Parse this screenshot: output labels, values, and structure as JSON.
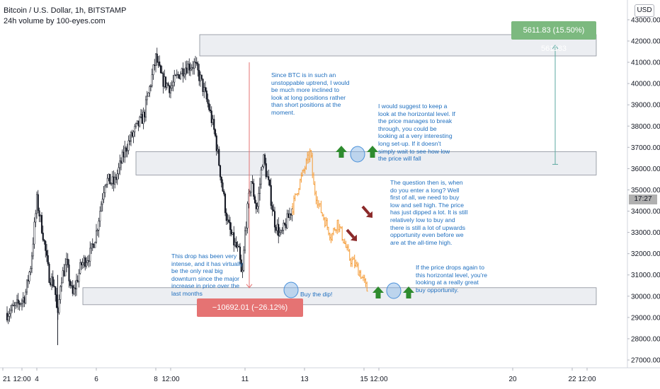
{
  "header": {
    "title": "Bitcoin / U.S. Dollar, 1h, BITSTAMP",
    "subtitle": "24h volume by 100-eyes.com",
    "currency_button": "USD",
    "current_price_tag": "17:27"
  },
  "colors": {
    "candle": "#131722",
    "projection": "#f5a142",
    "zone_fill": "#eceef2",
    "zone_border": "#8a8e99",
    "note_text": "#1f6fbf",
    "up_arrow": "#2e8b2e",
    "down_arrow": "#8b2a2a",
    "circle": "#4a90d9",
    "measure_up": "#5ba9a0",
    "measure_down": "#e57373"
  },
  "annotations": {
    "note_uptrend": "Since BTC is in such an unstoppable uptrend, I would be much more inclined to look at long positions rather than short positions at the moment.",
    "note_horizontal": "I would suggest to keep a look at the horizontal level. If the price manages to break through, you could be looking at a very interesting long set-up. If it doesn't simply wait to see how low the price will fall",
    "note_question": "The question then is, when do you enter a long? Well first of all, we need to buy low and sell high. The price has just dipped a lot. It is still relatively low to buy and there is still a lot of upwards opportunity even before we are at the all-time high.",
    "note_drop": "This drop has been very intense, and it has virtually be the only real big downturn since the major increase in price over the last months",
    "note_buy_dip": "Buy the dip!",
    "note_great_buy": "If the price drops again to this horizontal level, you're looking at a really great buy opportunity.",
    "measure_up_label": "5611.83 (15.50%) 561183",
    "measure_down_label": "−10692.01 (−26.12%) −1069201"
  },
  "chart_data": {
    "type": "candlestick",
    "title": "Bitcoin / U.S. Dollar, 1h, BITSTAMP",
    "xlabel": "",
    "ylabel": "",
    "ylim": [
      26500,
      43500
    ],
    "y_ticks": [
      27000,
      28000,
      29000,
      30000,
      31000,
      32000,
      33000,
      34000,
      35000,
      36000,
      37000,
      38000,
      39000,
      40000,
      41000,
      42000,
      43000
    ],
    "y_tick_labels": [
      "27000.00",
      "28000.00",
      "29000.00",
      "30000.00",
      "31000.00",
      "32000.00",
      "33000.00",
      "34000.00",
      "35000.00",
      "36000.00",
      "37000.00",
      "38000.00",
      "39000.00",
      "40000.00",
      "41000.00",
      "42000.00",
      "43000.00"
    ],
    "x_tick_labels": [
      "21",
      "12:00",
      "4",
      "6",
      "8",
      "12:00",
      "11",
      "13",
      "15",
      "12:00",
      "20",
      "22",
      "12:00"
    ],
    "x_tick_days": [
      3.0,
      3.5,
      4.0,
      6.0,
      8.0,
      8.5,
      11.0,
      13.0,
      15.0,
      15.5,
      20.0,
      22.0,
      22.5
    ],
    "x_range_days": [
      3.0,
      23.0
    ],
    "close_path": [
      [
        3.0,
        29200
      ],
      [
        3.3,
        29500
      ],
      [
        3.6,
        30000
      ],
      [
        3.8,
        31500
      ],
      [
        4.0,
        34500
      ],
      [
        4.2,
        33000
      ],
      [
        4.4,
        31000
      ],
      [
        4.6,
        30500
      ],
      [
        4.7,
        28800
      ],
      [
        4.8,
        30800
      ],
      [
        5.0,
        31500
      ],
      [
        5.2,
        30000
      ],
      [
        5.5,
        31500
      ],
      [
        5.8,
        32000
      ],
      [
        6.0,
        33000
      ],
      [
        6.3,
        35500
      ],
      [
        6.6,
        35300
      ],
      [
        7.0,
        37000
      ],
      [
        7.3,
        37800
      ],
      [
        7.6,
        38500
      ],
      [
        7.9,
        40500
      ],
      [
        8.0,
        41200
      ],
      [
        8.2,
        40200
      ],
      [
        8.5,
        39800
      ],
      [
        8.8,
        40500
      ],
      [
        9.0,
        40800
      ],
      [
        9.3,
        40900
      ],
      [
        9.5,
        40200
      ],
      [
        9.8,
        38800
      ],
      [
        10.0,
        37500
      ],
      [
        10.2,
        35500
      ],
      [
        10.4,
        33500
      ],
      [
        10.6,
        32600
      ],
      [
        10.8,
        32000
      ],
      [
        10.9,
        30700
      ],
      [
        11.0,
        33000
      ],
      [
        11.2,
        35500
      ],
      [
        11.4,
        34000
      ],
      [
        11.6,
        36600
      ],
      [
        11.8,
        35200
      ],
      [
        12.0,
        33500
      ],
      [
        12.2,
        32800
      ],
      [
        12.4,
        33500
      ],
      [
        12.6,
        34200
      ]
    ],
    "projection_path": [
      [
        12.6,
        34200
      ],
      [
        12.8,
        35200
      ],
      [
        13.0,
        36000
      ],
      [
        13.2,
        36800
      ],
      [
        13.3,
        35200
      ],
      [
        13.5,
        34200
      ],
      [
        13.7,
        33500
      ],
      [
        13.9,
        32800
      ],
      [
        14.1,
        33500
      ],
      [
        14.3,
        32700
      ],
      [
        14.5,
        31800
      ],
      [
        14.7,
        31500
      ],
      [
        14.9,
        31000
      ],
      [
        15.1,
        30300
      ]
    ],
    "zones": [
      {
        "name": "resistance-zone",
        "low": 41300,
        "high": 42300
      },
      {
        "name": "middle-zone",
        "low": 35700,
        "high": 36800
      },
      {
        "name": "support-zone",
        "low": 29600,
        "high": 30400
      }
    ],
    "measure_up": {
      "from": 36200,
      "to": 41800,
      "label": "5611.83 (15.50%) 561183"
    },
    "measure_down": {
      "from": 41000,
      "to": 30400,
      "label": "−10692.01 (−26.12%) −1069201"
    },
    "current_price_label": "17:27",
    "grid": false
  }
}
